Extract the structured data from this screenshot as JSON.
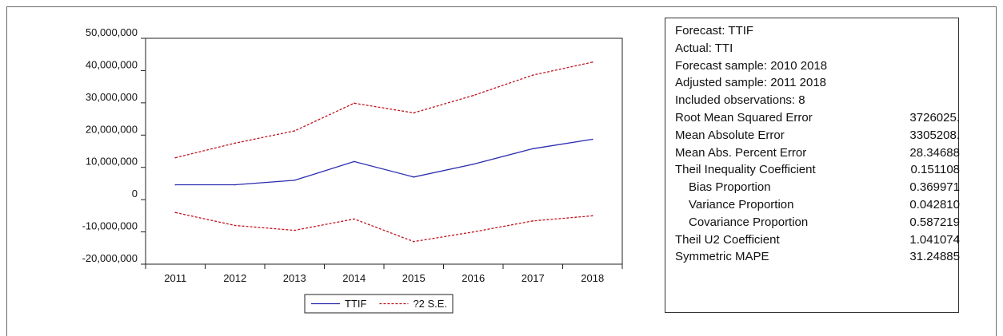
{
  "chart_data": {
    "type": "line",
    "categories": [
      "2011",
      "2012",
      "2013",
      "2014",
      "2015",
      "2016",
      "2017",
      "2018"
    ],
    "series": [
      {
        "name": "TTIF",
        "values": [
          4600000,
          4600000,
          6000000,
          11800000,
          7000000,
          11000000,
          15800000,
          18700000
        ],
        "color": "#2b2bb0",
        "dash": "solid"
      },
      {
        "name": "?2 S.E.",
        "values": [
          13000000,
          17500000,
          21300000,
          29900000,
          26900000,
          32300000,
          38600000,
          42600000
        ],
        "color": "#c0141e",
        "dash": "dashed"
      },
      {
        "name": "",
        "values": [
          -4000000,
          -8000000,
          -9500000,
          -6000000,
          -13000000,
          -10000000,
          -6600000,
          -5000000
        ],
        "color": "#c0141e",
        "dash": "dashed"
      }
    ],
    "yticks": [
      "50,000,000",
      "40,000,000",
      "30,000,000",
      "20,000,000",
      "10,000,000",
      "0",
      "-10,000,000",
      "-20,000,000"
    ],
    "ylim": [
      -20000000,
      50000000
    ],
    "legend": [
      {
        "label": "TTIF",
        "color": "#2b2bb0",
        "dash": "solid"
      },
      {
        "label": "?2 S.E.",
        "color": "#c0141e",
        "dash": "dashed"
      }
    ],
    "legend_position": "bottom-center",
    "grid": false
  },
  "stats": [
    {
      "label": "Forecast: TTIF",
      "value": "",
      "indent": false
    },
    {
      "label": "Actual: TTI",
      "value": "",
      "indent": false
    },
    {
      "label": "Forecast sample: 2010 2018",
      "value": "",
      "indent": false
    },
    {
      "label": "Adjusted sample: 2011 2018",
      "value": "",
      "indent": false
    },
    {
      "label": "Included observations: 8",
      "value": "",
      "indent": false
    },
    {
      "label": "Root Mean Squared Error",
      "value": "3726025.",
      "indent": false
    },
    {
      "label": "Mean Absolute Error",
      "value": "3305208.",
      "indent": false
    },
    {
      "label": "Mean Abs. Percent Error",
      "value": "28.34688",
      "indent": false
    },
    {
      "label": "Theil Inequality Coefficient",
      "value": "0.151108",
      "indent": false
    },
    {
      "label": "Bias Proportion",
      "value": "0.369971",
      "indent": true
    },
    {
      "label": "Variance Proportion",
      "value": "0.042810",
      "indent": true
    },
    {
      "label": "Covariance Proportion",
      "value": "0.587219",
      "indent": true
    },
    {
      "label": "Theil U2 Coefficient",
      "value": "1.041074",
      "indent": false
    },
    {
      "label": "Symmetric MAPE",
      "value": "31.24885",
      "indent": false
    }
  ]
}
